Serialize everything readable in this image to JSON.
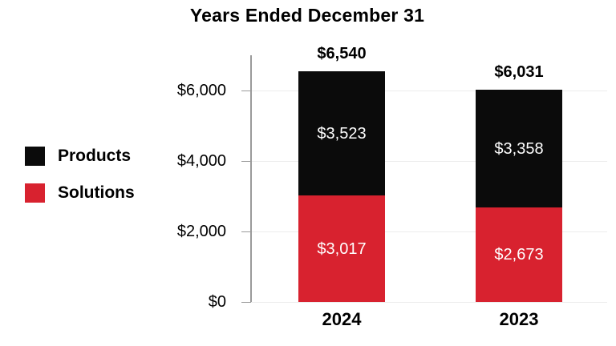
{
  "title": "Years Ended December 31",
  "chart_data": {
    "type": "bar",
    "stacked": true,
    "title": "Years Ended December 31",
    "categories": [
      "2024",
      "2023"
    ],
    "series": [
      {
        "name": "Products",
        "color": "#0b0b0b",
        "values": [
          3523,
          3358
        ]
      },
      {
        "name": "Solutions",
        "color": "#d8222f",
        "values": [
          3017,
          2673
        ]
      }
    ],
    "segment_labels": [
      [
        "$3,523",
        "$3,358"
      ],
      [
        "$3,017",
        "$2,673"
      ]
    ],
    "totals": [
      6540,
      6031
    ],
    "total_labels": [
      "$6,540",
      "$6,031"
    ],
    "yticks": [
      0,
      2000,
      4000,
      6000
    ],
    "ytick_labels": [
      "$0",
      "$2,000",
      "$4,000",
      "$6,000"
    ],
    "ylim": [
      0,
      6000
    ],
    "grid": true,
    "legend_position": "left"
  },
  "colors": {
    "background": "#ffffff",
    "text": "#000000",
    "axis": "#9a9a9a",
    "gridline": "#ececec",
    "bar_value_text": "#ffffff",
    "products": "#0b0b0b",
    "solutions": "#d8222f"
  }
}
